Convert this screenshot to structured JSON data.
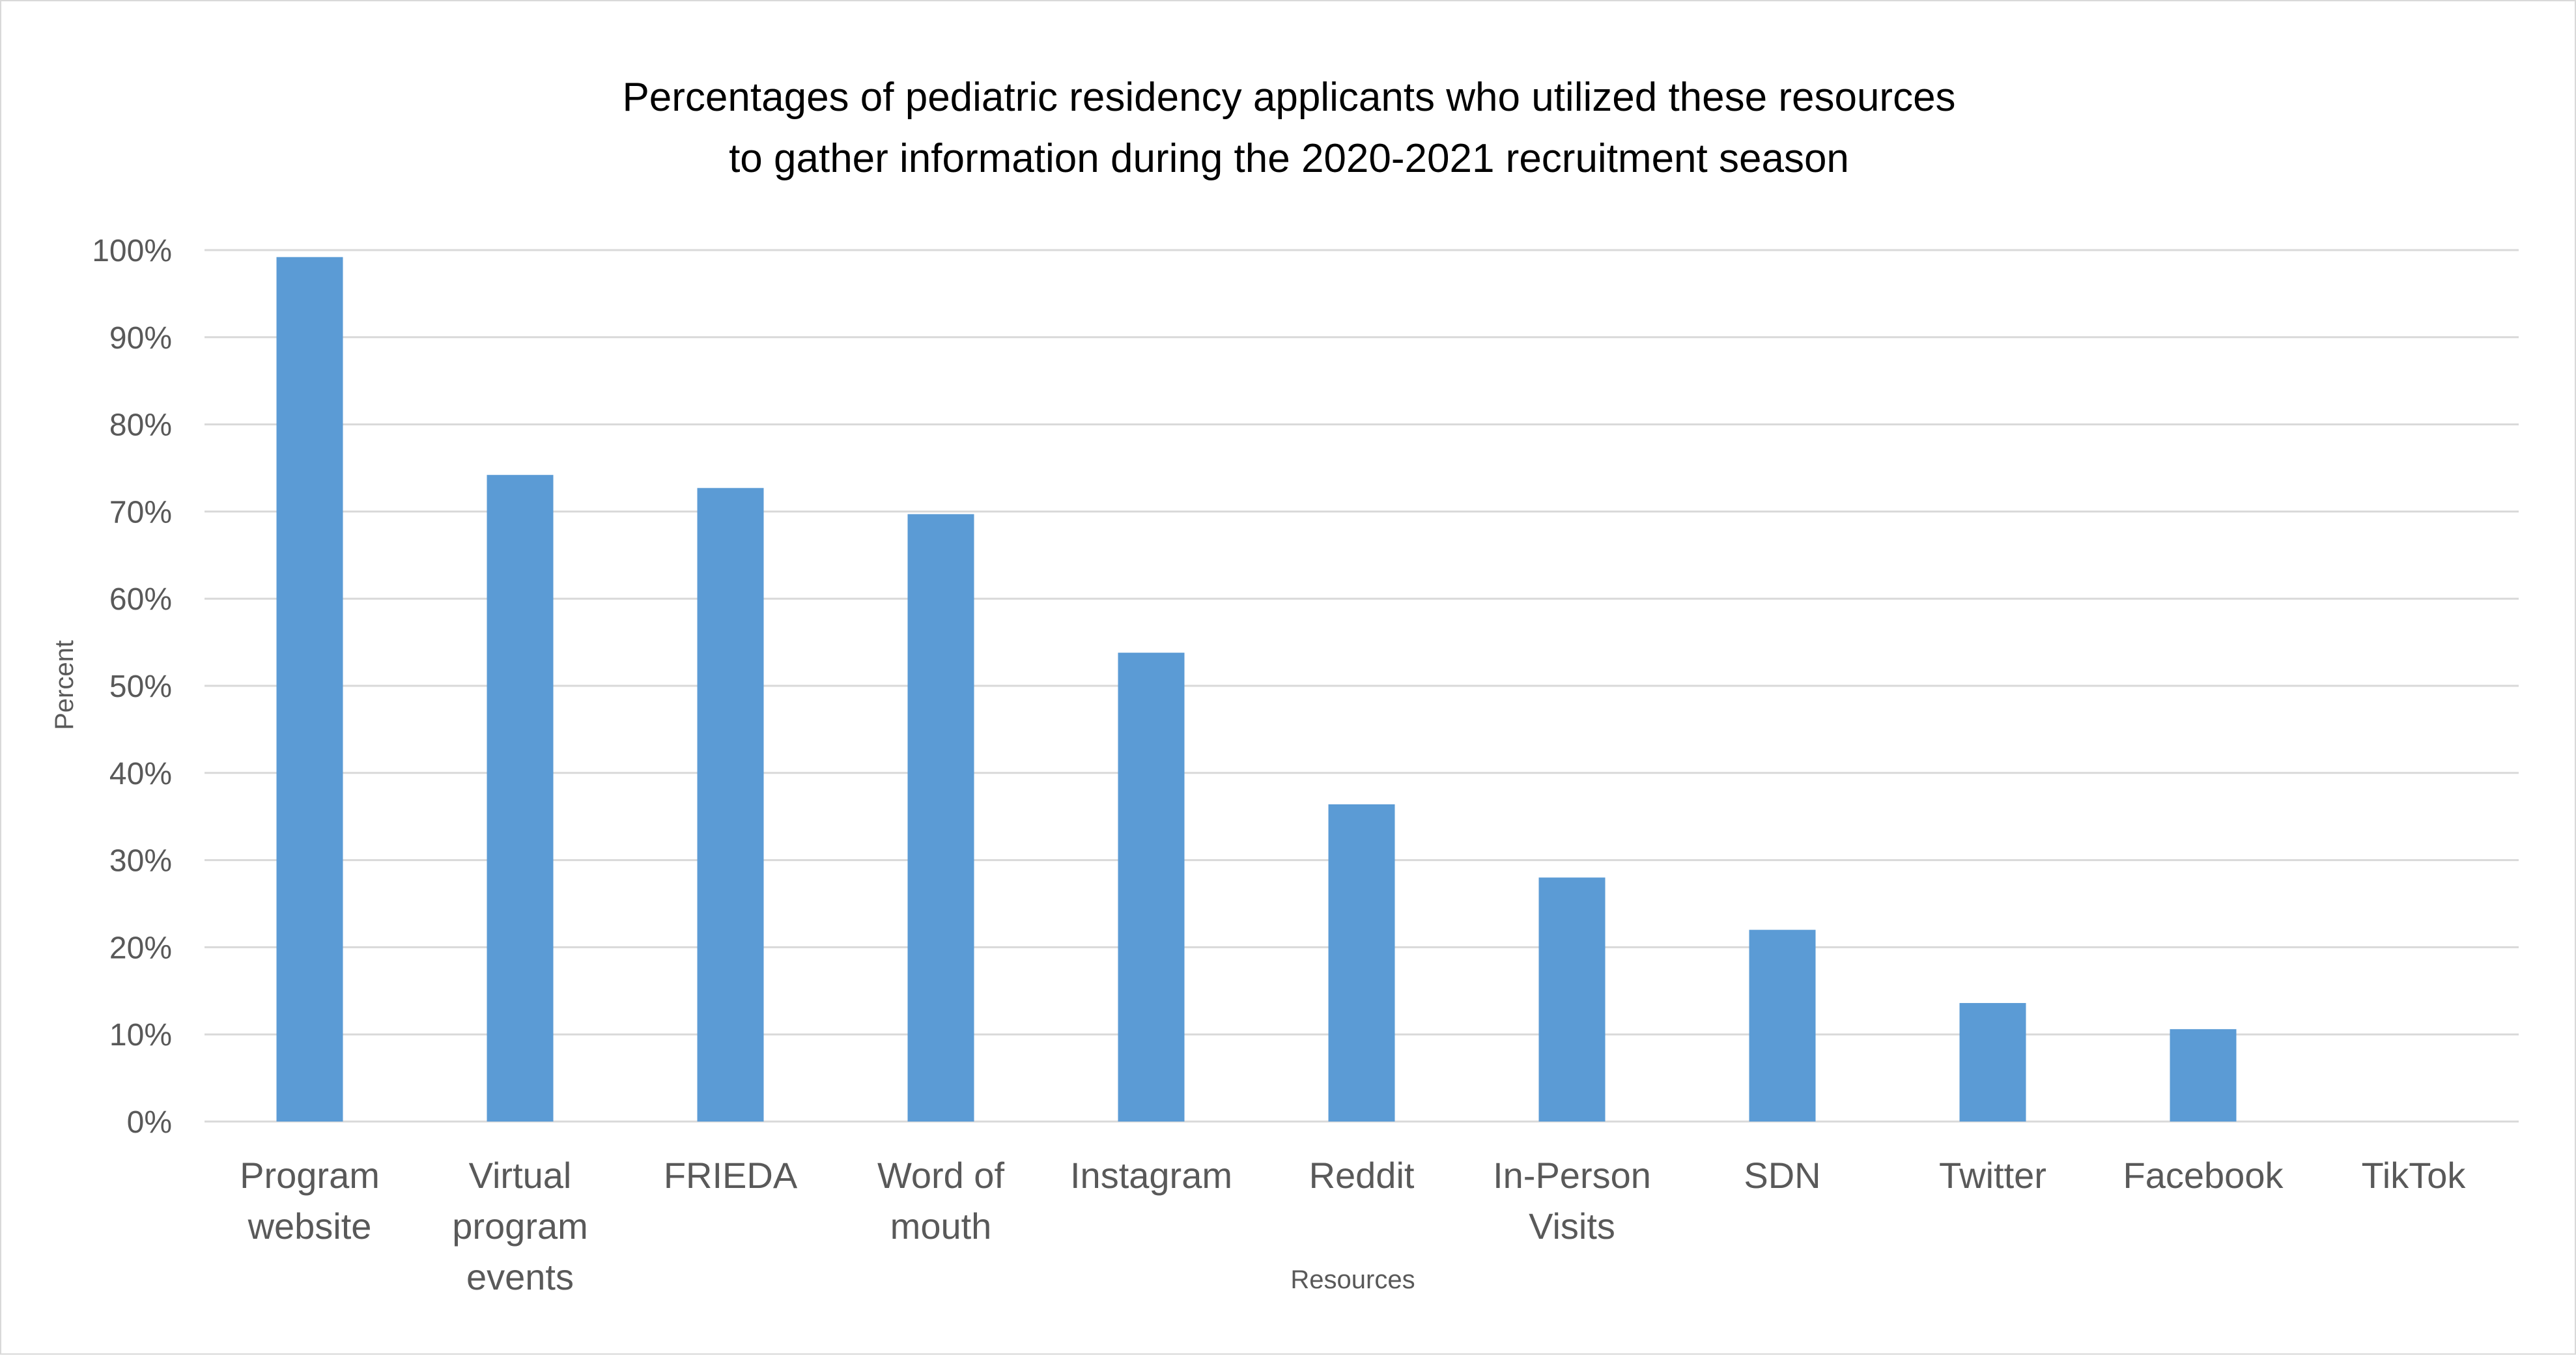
{
  "chart_data": {
    "type": "bar",
    "title": [
      "Percentages of pediatric residency applicants who utilized these resources",
      "to gather information during the 2020-2021 recruitment season"
    ],
    "xlabel": "Resources",
    "ylabel": "Percent",
    "categories": [
      [
        "Program",
        "website"
      ],
      [
        "Virtual",
        "program",
        "events"
      ],
      [
        "FRIEDA"
      ],
      [
        "Word of",
        "mouth"
      ],
      [
        "Instagram"
      ],
      [
        "Reddit"
      ],
      [
        "In-Person",
        "Visits"
      ],
      [
        "SDN"
      ],
      [
        "Twitter"
      ],
      [
        "Facebook"
      ],
      [
        "TikTok"
      ]
    ],
    "values": [
      99.2,
      74.2,
      72.7,
      69.7,
      53.8,
      36.4,
      28.0,
      22.0,
      13.6,
      10.6,
      0
    ],
    "ylim": [
      0,
      100
    ],
    "yticks": [
      "0%",
      "10%",
      "20%",
      "30%",
      "40%",
      "50%",
      "60%",
      "70%",
      "80%",
      "90%",
      "100%"
    ],
    "grid": true,
    "legend": "none",
    "bar_color": "#5b9bd5"
  }
}
